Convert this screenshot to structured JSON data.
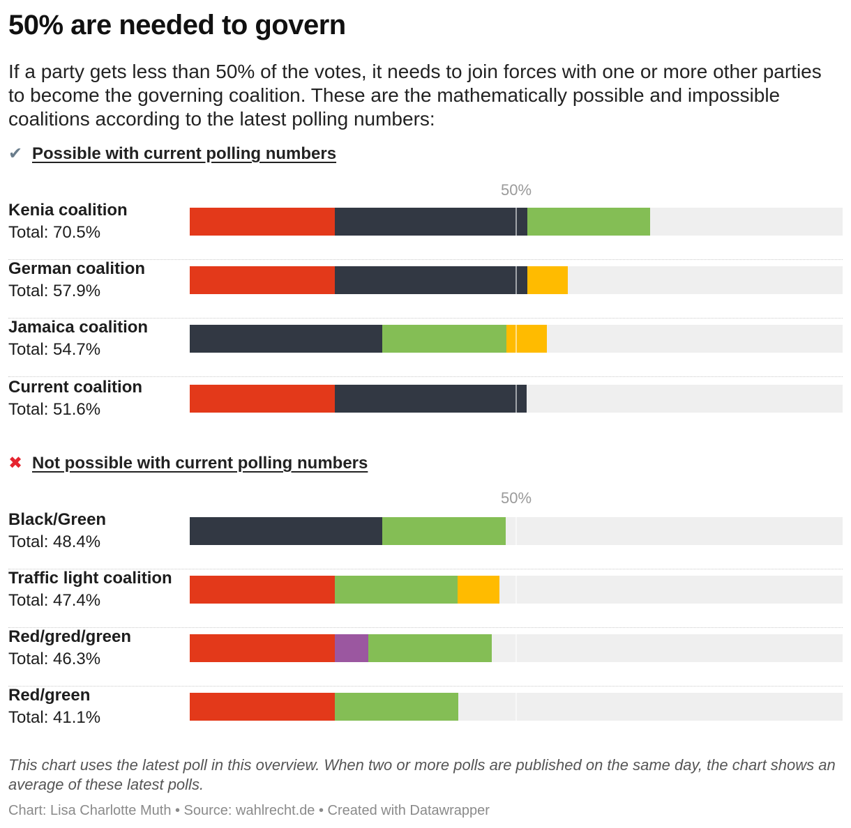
{
  "title": "50% are needed to govern",
  "description": "If a party gets less than 50% of the votes, it needs to join forces with one or more other parties to become the governing coalition. These are the mathematically possible and impossible coalitions according to the latest polling numbers:",
  "sections": [
    {
      "icon": "check-icon",
      "heading": "Possible with current polling numbers",
      "threshold_label": "50%"
    },
    {
      "icon": "cross-icon",
      "heading": "Not possible with current polling numbers",
      "threshold_label": "50%"
    }
  ],
  "notes": "This chart uses the latest poll in this overview. When two or more polls are published on the same day, the chart shows an average of these latest polls.",
  "byline": "Chart: Lisa Charlotte Muth • Source: wahlrecht.de • Created with Datawrapper",
  "colors": {
    "red": "#e3391a",
    "black": "#323843",
    "green": "#84be55",
    "yellow": "#ffbb00",
    "purple": "#9b57a0",
    "track": "#efefef"
  },
  "chart_data": {
    "type": "bar",
    "stacked": true,
    "xlim": [
      0,
      100
    ],
    "threshold": 50,
    "groups": [
      {
        "rows": [
          {
            "name": "Kenia coalition",
            "total": "Total: 70.5%",
            "segments": [
              {
                "color": "red",
                "value": 22.2
              },
              {
                "color": "black",
                "value": 29.5
              },
              {
                "color": "green",
                "value": 18.8
              }
            ]
          },
          {
            "name": "German coalition",
            "total": "Total: 57.9%",
            "segments": [
              {
                "color": "red",
                "value": 22.2
              },
              {
                "color": "black",
                "value": 29.5
              },
              {
                "color": "yellow",
                "value": 6.2
              }
            ]
          },
          {
            "name": "Jamaica coalition",
            "total": "Total: 54.7%",
            "segments": [
              {
                "color": "black",
                "value": 29.5
              },
              {
                "color": "green",
                "value": 19.0
              },
              {
                "color": "yellow",
                "value": 6.2
              }
            ]
          },
          {
            "name": "Current coalition",
            "total": "Total: 51.6%",
            "segments": [
              {
                "color": "red",
                "value": 22.2
              },
              {
                "color": "black",
                "value": 29.4
              }
            ]
          }
        ]
      },
      {
        "rows": [
          {
            "name": "Black/Green",
            "total": "Total: 48.4%",
            "segments": [
              {
                "color": "black",
                "value": 29.5
              },
              {
                "color": "green",
                "value": 18.9
              }
            ]
          },
          {
            "name": "Traffic light coalition",
            "total": "Total: 47.4%",
            "segments": [
              {
                "color": "red",
                "value": 22.2
              },
              {
                "color": "green",
                "value": 18.8
              },
              {
                "color": "yellow",
                "value": 6.4
              }
            ]
          },
          {
            "name": "Red/gred/green",
            "total": "Total: 46.3%",
            "segments": [
              {
                "color": "red",
                "value": 22.2
              },
              {
                "color": "purple",
                "value": 5.1
              },
              {
                "color": "green",
                "value": 19.0
              }
            ]
          },
          {
            "name": "Red/green",
            "total": "Total: 41.1%",
            "segments": [
              {
                "color": "red",
                "value": 22.2
              },
              {
                "color": "green",
                "value": 18.9
              }
            ]
          }
        ]
      }
    ]
  }
}
